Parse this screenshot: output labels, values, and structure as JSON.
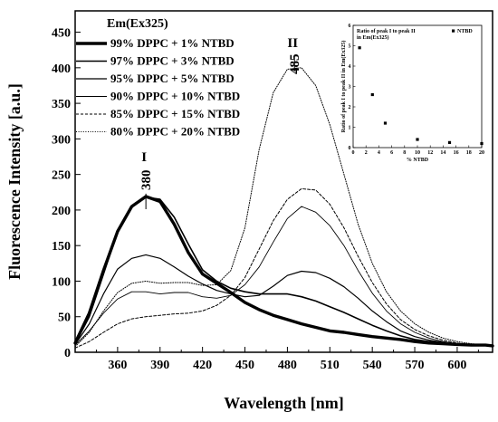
{
  "chart_data": [
    {
      "type": "line",
      "xlabel": "Wavelength [nm]",
      "ylabel": "Fluorescence Intensity [a.u.]",
      "xlim": [
        330,
        625
      ],
      "ylim": [
        0,
        480
      ],
      "xticks": [
        360,
        390,
        420,
        450,
        480,
        510,
        540,
        570,
        600
      ],
      "yticks": [
        0,
        50,
        100,
        150,
        200,
        250,
        300,
        350,
        400,
        450
      ],
      "legend_title": "Em(Ex325)",
      "legend_position": "top-left",
      "grid": false,
      "annotations": [
        {
          "roman": "I",
          "wavelength": "380",
          "x": 380
        },
        {
          "roman": "II",
          "wavelength": "485",
          "x": 485
        }
      ],
      "series": [
        {
          "name": "99% DPPC + 1% NTBD",
          "style": "thick-solid",
          "x": [
            330,
            340,
            350,
            360,
            370,
            380,
            390,
            400,
            410,
            420,
            430,
            440,
            450,
            460,
            470,
            480,
            490,
            500,
            510,
            520,
            530,
            540,
            550,
            560,
            570,
            580,
            590,
            600,
            610,
            620,
            625
          ],
          "y": [
            13,
            55,
            115,
            170,
            205,
            219,
            212,
            180,
            140,
            110,
            97,
            84,
            70,
            60,
            52,
            46,
            40,
            35,
            30,
            28,
            25,
            22,
            20,
            18,
            15,
            13,
            12,
            11,
            10,
            10,
            9
          ]
        },
        {
          "name": "97% DPPC + 3% NTBD",
          "style": "solid-1.6",
          "x": [
            330,
            340,
            350,
            360,
            370,
            380,
            390,
            400,
            410,
            420,
            430,
            440,
            450,
            460,
            470,
            480,
            490,
            500,
            510,
            520,
            530,
            540,
            550,
            560,
            570,
            580,
            590,
            600,
            610,
            620,
            625
          ],
          "y": [
            12,
            50,
            110,
            170,
            205,
            218,
            215,
            190,
            152,
            116,
            100,
            90,
            85,
            82,
            82,
            82,
            78,
            72,
            64,
            56,
            47,
            38,
            30,
            23,
            18,
            15,
            13,
            11,
            10,
            10,
            9
          ]
        },
        {
          "name": "95% DPPC + 5% NTBD",
          "style": "solid-1.2",
          "x": [
            330,
            340,
            350,
            360,
            370,
            380,
            390,
            400,
            410,
            420,
            430,
            440,
            450,
            460,
            470,
            480,
            490,
            500,
            510,
            520,
            530,
            540,
            550,
            560,
            570,
            580,
            590,
            600,
            610,
            620,
            625
          ],
          "y": [
            11,
            40,
            82,
            117,
            132,
            137,
            132,
            120,
            107,
            96,
            87,
            82,
            78,
            80,
            93,
            108,
            114,
            112,
            104,
            92,
            76,
            58,
            43,
            30,
            22,
            17,
            14,
            12,
            10,
            9,
            9
          ]
        },
        {
          "name": "90% DPPC + 10% NTBD",
          "style": "solid-0.9",
          "x": [
            330,
            340,
            350,
            360,
            370,
            380,
            390,
            400,
            410,
            420,
            430,
            440,
            450,
            460,
            470,
            480,
            490,
            500,
            510,
            520,
            530,
            540,
            550,
            560,
            570,
            580,
            590,
            600,
            610,
            620,
            625
          ],
          "y": [
            10,
            30,
            55,
            75,
            85,
            85,
            82,
            84,
            84,
            78,
            76,
            80,
            95,
            120,
            155,
            188,
            205,
            197,
            178,
            150,
            115,
            83,
            58,
            40,
            28,
            20,
            15,
            12,
            10,
            9,
            9
          ]
        },
        {
          "name": "85% DPPC + 15% NTBD",
          "style": "dashed",
          "x": [
            330,
            340,
            350,
            360,
            370,
            380,
            390,
            400,
            410,
            420,
            430,
            440,
            450,
            460,
            470,
            480,
            490,
            500,
            510,
            520,
            530,
            540,
            550,
            560,
            570,
            580,
            590,
            600,
            610,
            620,
            625
          ],
          "y": [
            6,
            15,
            28,
            40,
            47,
            50,
            52,
            54,
            55,
            58,
            66,
            80,
            105,
            145,
            185,
            215,
            230,
            228,
            208,
            175,
            135,
            98,
            68,
            46,
            32,
            23,
            17,
            13,
            11,
            10,
            9
          ]
        },
        {
          "name": "80% DPPC + 20% NTBD",
          "style": "dotted",
          "x": [
            330,
            340,
            350,
            360,
            370,
            380,
            390,
            400,
            410,
            420,
            430,
            440,
            450,
            460,
            470,
            480,
            490,
            500,
            510,
            520,
            530,
            540,
            550,
            560,
            570,
            580,
            590,
            600,
            610,
            620,
            625
          ],
          "y": [
            8,
            28,
            58,
            84,
            97,
            100,
            97,
            98,
            98,
            94,
            95,
            115,
            175,
            285,
            365,
            398,
            400,
            375,
            320,
            250,
            180,
            125,
            85,
            58,
            40,
            28,
            20,
            15,
            12,
            10,
            9
          ]
        }
      ]
    },
    {
      "type": "scatter",
      "title": "Ratio of peak I to peak II in Em(Ex325)",
      "ylabel": "Ratio of peak I to peak II in Em(Ex325)",
      "xlabel": "% NTBD",
      "xlim": [
        0,
        20
      ],
      "ylim": [
        0,
        6
      ],
      "xticks": [
        0,
        2,
        4,
        6,
        8,
        10,
        12,
        14,
        16,
        18,
        20
      ],
      "yticks": [
        0,
        1,
        2,
        3,
        4,
        5,
        6
      ],
      "legend_position": "top-right",
      "series": [
        {
          "name": "NTBD",
          "x": [
            1,
            3,
            5,
            10,
            15,
            20
          ],
          "y": [
            4.9,
            2.6,
            1.2,
            0.4,
            0.25,
            0.2
          ]
        }
      ]
    }
  ]
}
